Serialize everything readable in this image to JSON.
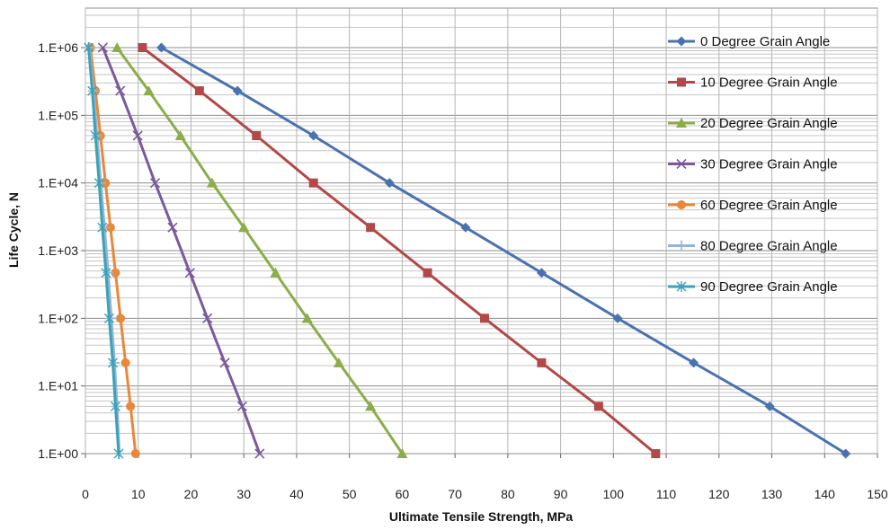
{
  "chart_data": {
    "type": "line",
    "title": "",
    "xlabel": "Ultimate Tensile Strength, MPa",
    "ylabel": "Life Cycle, N",
    "xlim": [
      0,
      150
    ],
    "ylim": [
      1,
      1000000
    ],
    "y_scale": "log",
    "grid": true,
    "legend_position": "top-right",
    "x_ticks": [
      "0",
      "10",
      "20",
      "30",
      "40",
      "50",
      "60",
      "70",
      "80",
      "90",
      "100",
      "110",
      "120",
      "130",
      "140",
      "150"
    ],
    "y_ticks": [
      "1.E+00",
      "1.E+01",
      "1.E+02",
      "1.E+03",
      "1.E+04",
      "1.E+05",
      "1.E+06"
    ],
    "y": [
      1000000,
      230000,
      50000,
      10000,
      2200,
      470,
      100,
      22,
      5,
      1
    ],
    "series": [
      {
        "name": "0 Degree Grain Angle",
        "color": "#4a72b0",
        "marker": "diamond",
        "x": [
          14.4,
          28.8,
          43.2,
          57.6,
          72.0,
          86.4,
          100.8,
          115.2,
          129.6,
          144.0
        ]
      },
      {
        "name": "10 Degree Grain Angle",
        "color": "#b24848",
        "marker": "square",
        "x": [
          10.8,
          21.6,
          32.4,
          43.2,
          54.0,
          64.8,
          75.6,
          86.4,
          97.2,
          108.0
        ]
      },
      {
        "name": "20 Degree Grain Angle",
        "color": "#8cad4a",
        "marker": "triangle",
        "x": [
          6.0,
          12.0,
          18.0,
          24.0,
          30.0,
          36.0,
          42.0,
          48.0,
          54.0,
          60.0
        ]
      },
      {
        "name": "30 Degree Grain Angle",
        "color": "#7a5a9c",
        "marker": "x",
        "x": [
          3.3,
          6.6,
          9.9,
          13.2,
          16.5,
          19.8,
          23.1,
          26.4,
          29.7,
          33.0
        ]
      },
      {
        "name": "60 Degree Grain Angle",
        "color": "#e8883a",
        "marker": "circle",
        "x": [
          0.95,
          1.9,
          2.85,
          3.8,
          4.75,
          5.7,
          6.65,
          7.6,
          8.55,
          9.5
        ]
      },
      {
        "name": "80 Degree Grain Angle",
        "color": "#94b4d6",
        "marker": "plus",
        "x": [
          0.75,
          1.5,
          2.2,
          2.9,
          3.6,
          4.3,
          4.9,
          5.5,
          6.0,
          6.4
        ]
      },
      {
        "name": "90 Degree Grain Angle",
        "color": "#3aa3b8",
        "marker": "star",
        "x": [
          0.6,
          1.3,
          1.9,
          2.6,
          3.2,
          3.9,
          4.5,
          5.2,
          5.7,
          6.3
        ]
      }
    ]
  }
}
